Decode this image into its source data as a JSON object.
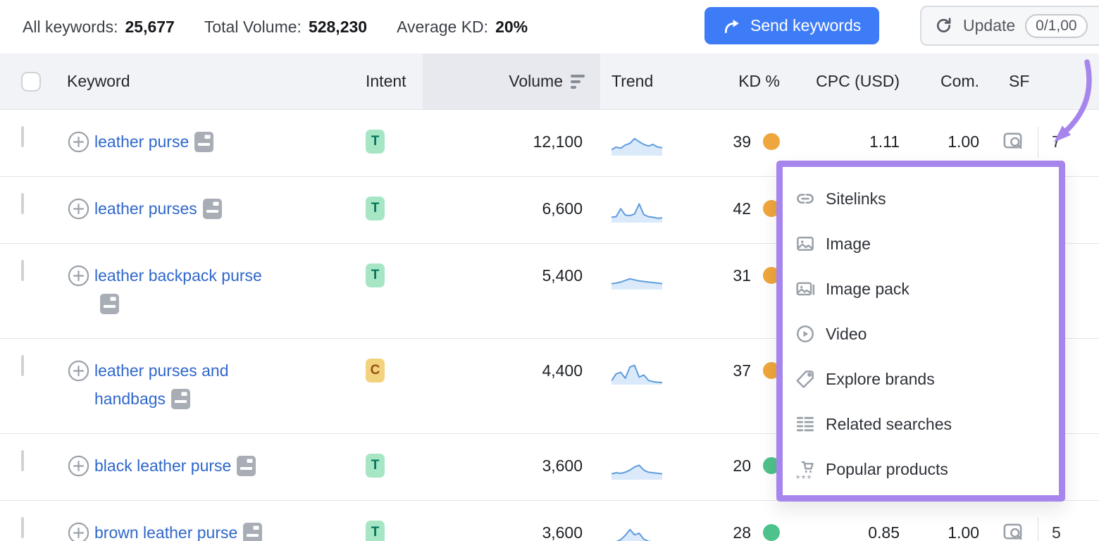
{
  "topbar": {
    "stats": [
      {
        "label": "All keywords:",
        "value": "25,677"
      },
      {
        "label": "Total Volume:",
        "value": "528,230"
      },
      {
        "label": "Average KD:",
        "value": "20%"
      }
    ],
    "send_button": "Send keywords",
    "update_button": "Update",
    "update_counter": "0/1,00"
  },
  "table": {
    "columns": {
      "keyword": "Keyword",
      "intent": "Intent",
      "volume": "Volume",
      "trend": "Trend",
      "kd": "KD %",
      "cpc": "CPC (USD)",
      "com": "Com.",
      "sf": "SF"
    },
    "sorted_column": "volume",
    "rows": [
      {
        "keyword": "leather purse",
        "intent": "T",
        "volume": "12,100",
        "kd": "39",
        "kd_level": "orange",
        "cpc": "1.11",
        "com": "1.00",
        "sf": "7",
        "sf_dashed": false,
        "trend": [
          22,
          32,
          28,
          40,
          46,
          64,
          52,
          42,
          36,
          42,
          32,
          30
        ]
      },
      {
        "keyword": "leather purses",
        "intent": "T",
        "volume": "6,600",
        "kd": "42",
        "kd_level": "orange",
        "cpc": "",
        "com": "",
        "sf": "",
        "sf_dashed": false,
        "trend": [
          20,
          22,
          52,
          28,
          26,
          32,
          70,
          30,
          22,
          20,
          16,
          18
        ]
      },
      {
        "keyword": "leather backpack purse",
        "intent": "T",
        "volume": "5,400",
        "kd": "31",
        "kd_level": "orange",
        "cpc": "",
        "com": "",
        "sf": "",
        "sf_dashed": false,
        "trend": [
          22,
          24,
          28,
          34,
          40,
          36,
          32,
          30,
          28,
          26,
          24,
          22
        ]
      },
      {
        "keyword": "leather purses and handbags",
        "intent": "C",
        "volume": "4,400",
        "kd": "37",
        "kd_level": "orange",
        "cpc": "",
        "com": "",
        "sf": "",
        "sf_dashed": false,
        "trend": [
          14,
          40,
          46,
          24,
          66,
          72,
          28,
          36,
          16,
          11,
          9,
          8
        ]
      },
      {
        "keyword": "black leather purse",
        "intent": "T",
        "volume": "3,600",
        "kd": "20",
        "kd_level": "green",
        "cpc": "",
        "com": "",
        "sf": "",
        "sf_dashed": false,
        "trend": [
          22,
          26,
          24,
          28,
          36,
          48,
          54,
          36,
          28,
          26,
          24,
          22
        ]
      },
      {
        "keyword": "brown leather purse",
        "intent": "T",
        "volume": "3,600",
        "kd": "28",
        "kd_level": "green",
        "cpc": "0.85",
        "com": "1.00",
        "sf": "5",
        "sf_dashed": true,
        "trend": [
          14,
          18,
          26,
          42,
          64,
          44,
          50,
          28,
          20,
          18,
          16,
          14
        ]
      }
    ]
  },
  "serp_features_popup": {
    "items": [
      {
        "icon": "sitelinks-icon",
        "label": "Sitelinks"
      },
      {
        "icon": "image-icon",
        "label": "Image"
      },
      {
        "icon": "image-pack-icon",
        "label": "Image pack"
      },
      {
        "icon": "video-icon",
        "label": "Video"
      },
      {
        "icon": "explore-brands-icon",
        "label": "Explore brands"
      },
      {
        "icon": "related-searches-icon",
        "label": "Related searches"
      },
      {
        "icon": "popular-products-icon",
        "label": "Popular products"
      }
    ]
  },
  "colors": {
    "accent_blue": "#3E7CF7",
    "link_blue": "#2F67CB",
    "popup_purple": "#A685EC",
    "kd_orange": "#EFA63C",
    "kd_green": "#4EC28B",
    "intent_t_bg": "#A7E6C5",
    "intent_t_text": "#00745B",
    "intent_c_bg": "#F3D27D",
    "intent_c_text": "#975114",
    "trend_line": "#5F9CDC",
    "trend_fill": "#DBEAFB",
    "header_bg": "#F2F3F7",
    "volume_col_bg": "#E7E9EF",
    "icon_gray": "#9AA1A9"
  }
}
